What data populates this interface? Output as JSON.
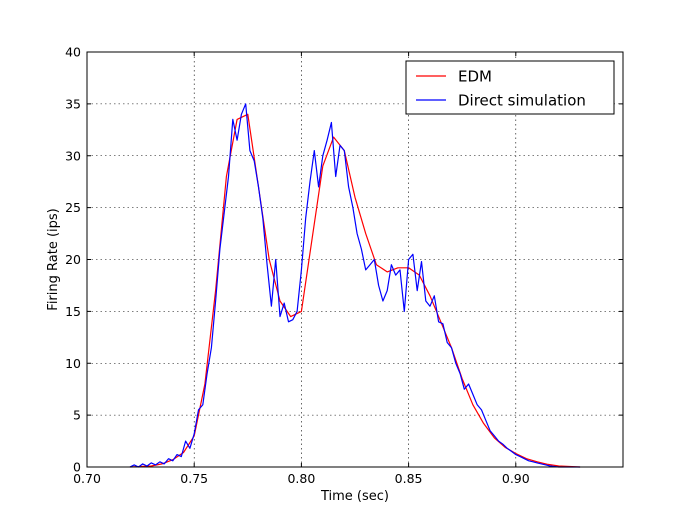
{
  "chart_data": {
    "type": "line",
    "xlabel": "Time (sec)",
    "ylabel": "Firing Rate (ips)",
    "xlim": [
      0.7,
      0.95
    ],
    "ylim": [
      0,
      40
    ],
    "xticks": [
      "0.70",
      "0.75",
      "0.80",
      "0.85",
      "0.90"
    ],
    "yticks": [
      "0",
      "5",
      "10",
      "15",
      "20",
      "25",
      "30",
      "35",
      "40"
    ],
    "grid": true,
    "legend_position": "top-right",
    "series": [
      {
        "name": "EDM",
        "color": "#ff0000",
        "x": [
          0.72,
          0.73,
          0.735,
          0.74,
          0.745,
          0.75,
          0.755,
          0.76,
          0.765,
          0.77,
          0.775,
          0.78,
          0.785,
          0.79,
          0.795,
          0.8,
          0.805,
          0.81,
          0.815,
          0.82,
          0.825,
          0.83,
          0.835,
          0.84,
          0.845,
          0.85,
          0.855,
          0.86,
          0.865,
          0.87,
          0.875,
          0.88,
          0.885,
          0.89,
          0.895,
          0.9,
          0.905,
          0.91,
          0.915,
          0.92,
          0.93
        ],
        "y": [
          0,
          0.1,
          0.3,
          0.7,
          1.4,
          3,
          8,
          17,
          28,
          33.5,
          34,
          27,
          20,
          16,
          14.5,
          15,
          22,
          29,
          31.8,
          30.5,
          26,
          22.5,
          19.5,
          18.8,
          19.2,
          19.2,
          18.5,
          16.5,
          14,
          11.5,
          8.5,
          6,
          4.2,
          2.8,
          1.9,
          1.3,
          0.8,
          0.5,
          0.25,
          0.1,
          0
        ]
      },
      {
        "name": "Direct simulation",
        "color": "#0000ff",
        "x": [
          0.72,
          0.722,
          0.724,
          0.726,
          0.728,
          0.73,
          0.732,
          0.734,
          0.736,
          0.738,
          0.74,
          0.742,
          0.744,
          0.746,
          0.748,
          0.75,
          0.752,
          0.754,
          0.756,
          0.758,
          0.76,
          0.762,
          0.764,
          0.766,
          0.768,
          0.77,
          0.772,
          0.774,
          0.776,
          0.778,
          0.78,
          0.782,
          0.784,
          0.786,
          0.788,
          0.79,
          0.792,
          0.794,
          0.796,
          0.798,
          0.8,
          0.802,
          0.804,
          0.806,
          0.808,
          0.81,
          0.812,
          0.814,
          0.816,
          0.818,
          0.82,
          0.822,
          0.824,
          0.826,
          0.828,
          0.83,
          0.832,
          0.834,
          0.836,
          0.838,
          0.84,
          0.842,
          0.844,
          0.846,
          0.848,
          0.85,
          0.852,
          0.854,
          0.856,
          0.858,
          0.86,
          0.862,
          0.864,
          0.866,
          0.868,
          0.87,
          0.872,
          0.874,
          0.876,
          0.878,
          0.88,
          0.882,
          0.884,
          0.886,
          0.888,
          0.89,
          0.892,
          0.894,
          0.896,
          0.898,
          0.9,
          0.902,
          0.904,
          0.906,
          0.908,
          0.91,
          0.912,
          0.914,
          0.916,
          0.918,
          0.92,
          0.925,
          0.93
        ],
        "y": [
          0,
          0.2,
          0,
          0.3,
          0.1,
          0.4,
          0.2,
          0.5,
          0.3,
          0.8,
          0.6,
          1.2,
          1.0,
          2.5,
          1.8,
          3.2,
          5.5,
          6.0,
          9.0,
          11.5,
          16.0,
          21.0,
          24.5,
          28.0,
          33.5,
          31.5,
          34.0,
          35.0,
          30.5,
          29.5,
          27.0,
          24.0,
          19.5,
          15.5,
          20.0,
          14.5,
          15.8,
          14.0,
          14.2,
          15.0,
          19.0,
          24.0,
          27.5,
          30.5,
          27.0,
          30.0,
          31.5,
          33.2,
          28.0,
          31.0,
          30.5,
          27.0,
          25.0,
          22.5,
          21.0,
          19.0,
          19.5,
          20.0,
          17.5,
          16.0,
          17.0,
          19.5,
          18.5,
          19.0,
          15.0,
          20.0,
          20.5,
          17.0,
          19.8,
          16.0,
          15.5,
          16.5,
          14.0,
          13.8,
          12.0,
          11.5,
          10.0,
          9.0,
          7.5,
          8.0,
          7.0,
          6.0,
          5.5,
          4.5,
          3.5,
          3.0,
          2.5,
          2.2,
          1.8,
          1.5,
          1.2,
          1.0,
          0.8,
          0.6,
          0.5,
          0.4,
          0.3,
          0.2,
          0.1,
          0.05,
          0,
          0,
          0
        ]
      }
    ]
  }
}
